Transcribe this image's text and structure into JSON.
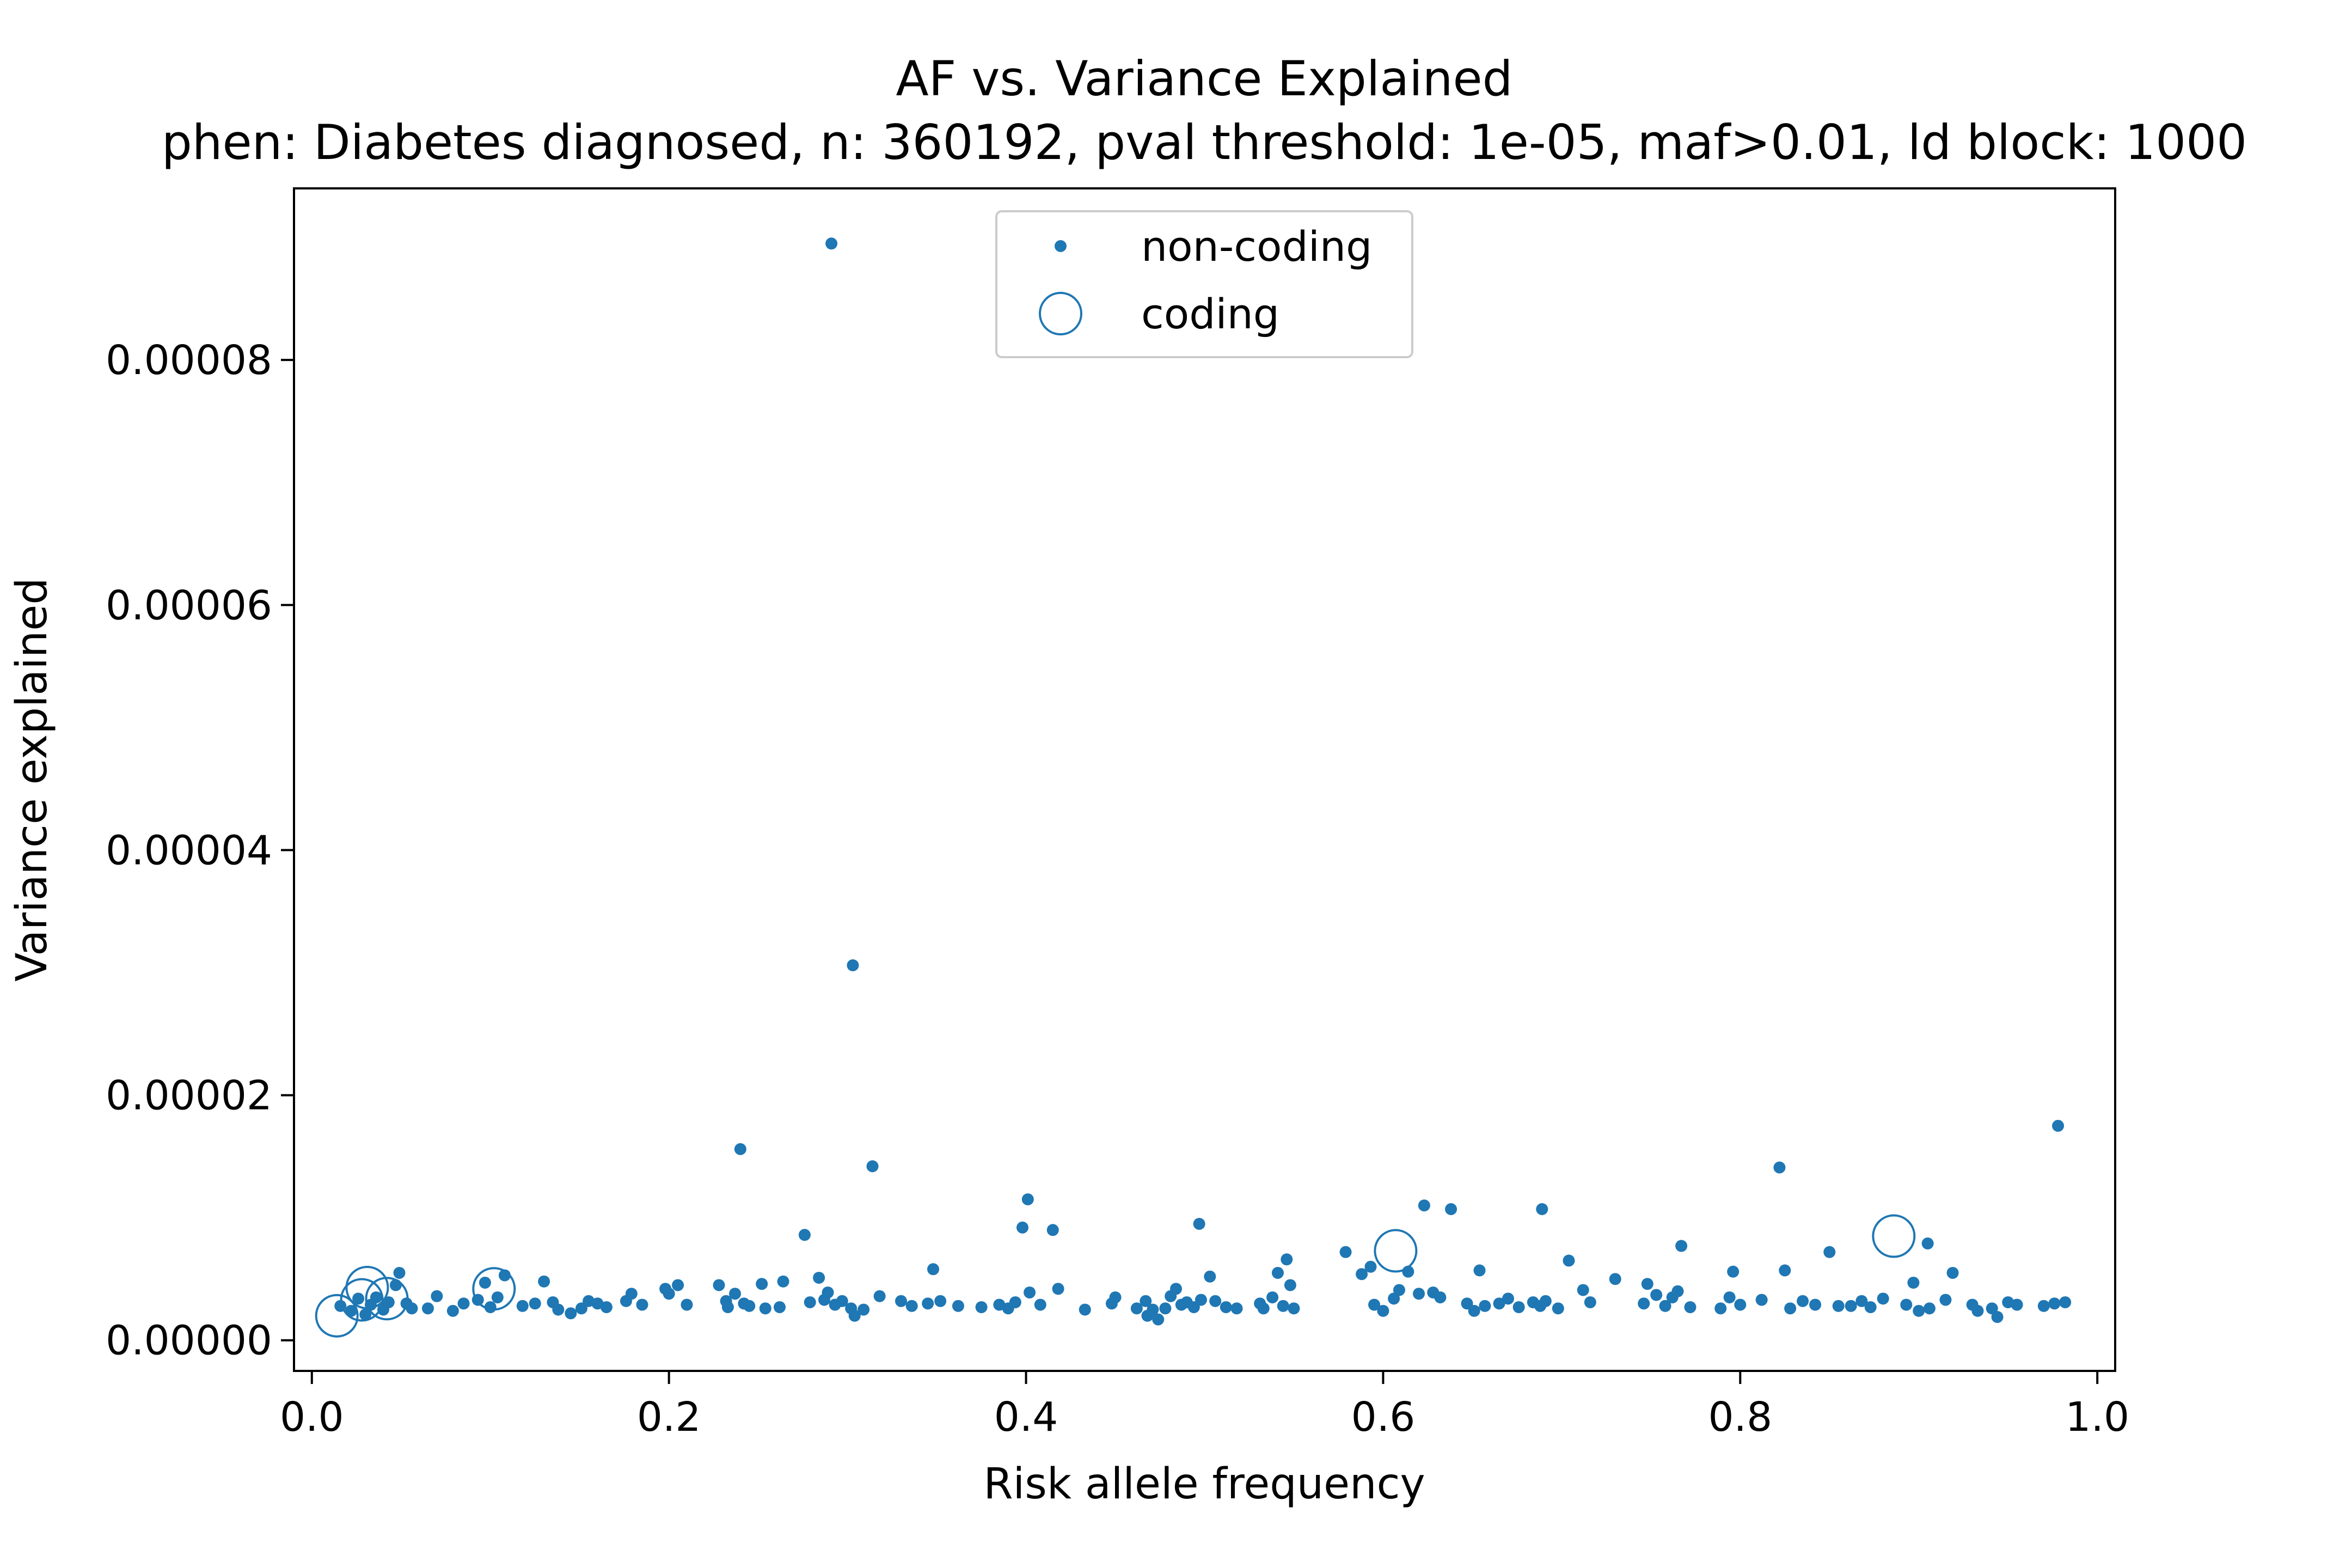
{
  "chart_data": {
    "type": "scatter",
    "title": "AF vs. Variance Explained",
    "subtitle": "phen: Diabetes diagnosed, n: 360192, pval threshold: 1e-05, maf>0.01, ld block: 1000",
    "xlabel": "Risk allele frequency",
    "ylabel": "Variance explained",
    "xlim": [
      -0.01,
      1.01
    ],
    "ylim": [
      -2.5e-06,
      9.4e-05
    ],
    "x_ticks": [
      0.0,
      0.2,
      0.4,
      0.6,
      0.8,
      1.0
    ],
    "x_tick_labels": [
      "0.0",
      "0.2",
      "0.4",
      "0.6",
      "0.8",
      "1.0"
    ],
    "y_ticks": [
      0,
      2e-05,
      4e-05,
      6e-05,
      8e-05
    ],
    "y_tick_labels": [
      "0.00000",
      "0.00002",
      "0.00004",
      "0.00006",
      "0.00008"
    ],
    "grid": false,
    "legend_position": "upper center",
    "series": [
      {
        "name": "non-coding",
        "marker": "dot",
        "color": "#1f77b4",
        "points": [
          [
            0.016,
            2.8e-06
          ],
          [
            0.022,
            2.4e-06
          ],
          [
            0.026,
            3.4e-06
          ],
          [
            0.03,
            2.1e-06
          ],
          [
            0.033,
            2.9e-06
          ],
          [
            0.036,
            3.5e-06
          ],
          [
            0.04,
            2.5e-06
          ],
          [
            0.043,
            3.1e-06
          ],
          [
            0.047,
            4.5e-06
          ],
          [
            0.049,
            5.5e-06
          ],
          [
            0.053,
            3e-06
          ],
          [
            0.056,
            2.6e-06
          ],
          [
            0.065,
            2.6e-06
          ],
          [
            0.07,
            3.6e-06
          ],
          [
            0.079,
            2.4e-06
          ],
          [
            0.085,
            3e-06
          ],
          [
            0.093,
            3.3e-06
          ],
          [
            0.097,
            4.7e-06
          ],
          [
            0.1,
            2.7e-06
          ],
          [
            0.104,
            3.5e-06
          ],
          [
            0.108,
            5.3e-06
          ],
          [
            0.118,
            2.8e-06
          ],
          [
            0.125,
            3e-06
          ],
          [
            0.13,
            4.8e-06
          ],
          [
            0.135,
            3.1e-06
          ],
          [
            0.138,
            2.5e-06
          ],
          [
            0.145,
            2.2e-06
          ],
          [
            0.151,
            2.6e-06
          ],
          [
            0.155,
            3.2e-06
          ],
          [
            0.16,
            3e-06
          ],
          [
            0.165,
            2.7e-06
          ],
          [
            0.176,
            3.2e-06
          ],
          [
            0.179,
            3.8e-06
          ],
          [
            0.185,
            2.9e-06
          ],
          [
            0.198,
            4.2e-06
          ],
          [
            0.2,
            3.8e-06
          ],
          [
            0.205,
            4.5e-06
          ],
          [
            0.21,
            2.9e-06
          ],
          [
            0.228,
            4.5e-06
          ],
          [
            0.232,
            3.2e-06
          ],
          [
            0.233,
            2.7e-06
          ],
          [
            0.237,
            3.8e-06
          ],
          [
            0.24,
            1.56e-05
          ],
          [
            0.242,
            3e-06
          ],
          [
            0.245,
            2.8e-06
          ],
          [
            0.252,
            4.6e-06
          ],
          [
            0.254,
            2.6e-06
          ],
          [
            0.262,
            2.7e-06
          ],
          [
            0.264,
            4.8e-06
          ],
          [
            0.276,
            8.6e-06
          ],
          [
            0.279,
            3.1e-06
          ],
          [
            0.284,
            5.1e-06
          ],
          [
            0.287,
            3.3e-06
          ],
          [
            0.291,
            8.95e-05
          ],
          [
            0.289,
            3.9e-06
          ],
          [
            0.293,
            2.9e-06
          ],
          [
            0.297,
            3.2e-06
          ],
          [
            0.302,
            2.6e-06
          ],
          [
            0.303,
            3.06e-05
          ],
          [
            0.304,
            2e-06
          ],
          [
            0.309,
            2.5e-06
          ],
          [
            0.314,
            1.42e-05
          ],
          [
            0.318,
            3.6e-06
          ],
          [
            0.33,
            3.2e-06
          ],
          [
            0.336,
            2.8e-06
          ],
          [
            0.345,
            3e-06
          ],
          [
            0.348,
            5.8e-06
          ],
          [
            0.352,
            3.2e-06
          ],
          [
            0.362,
            2.8e-06
          ],
          [
            0.375,
            2.7e-06
          ],
          [
            0.385,
            2.9e-06
          ],
          [
            0.39,
            2.6e-06
          ],
          [
            0.394,
            3.1e-06
          ],
          [
            0.398,
            9.2e-06
          ],
          [
            0.401,
            1.15e-05
          ],
          [
            0.402,
            3.9e-06
          ],
          [
            0.408,
            2.9e-06
          ],
          [
            0.415,
            9e-06
          ],
          [
            0.418,
            4.2e-06
          ],
          [
            0.433,
            2.5e-06
          ],
          [
            0.448,
            3e-06
          ],
          [
            0.45,
            3.5e-06
          ],
          [
            0.462,
            2.6e-06
          ],
          [
            0.467,
            3.2e-06
          ],
          [
            0.468,
            2e-06
          ],
          [
            0.471,
            2.5e-06
          ],
          [
            0.474,
            1.7e-06
          ],
          [
            0.478,
            2.6e-06
          ],
          [
            0.481,
            3.6e-06
          ],
          [
            0.484,
            4.2e-06
          ],
          [
            0.487,
            2.9e-06
          ],
          [
            0.49,
            3.1e-06
          ],
          [
            0.494,
            2.7e-06
          ],
          [
            0.497,
            9.5e-06
          ],
          [
            0.498,
            3.3e-06
          ],
          [
            0.503,
            5.2e-06
          ],
          [
            0.506,
            3.2e-06
          ],
          [
            0.512,
            2.7e-06
          ],
          [
            0.518,
            2.6e-06
          ],
          [
            0.531,
            3e-06
          ],
          [
            0.533,
            2.6e-06
          ],
          [
            0.538,
            3.5e-06
          ],
          [
            0.541,
            5.5e-06
          ],
          [
            0.544,
            2.8e-06
          ],
          [
            0.546,
            6.6e-06
          ],
          [
            0.548,
            4.5e-06
          ],
          [
            0.55,
            2.6e-06
          ],
          [
            0.579,
            7.2e-06
          ],
          [
            0.588,
            5.4e-06
          ],
          [
            0.593,
            6e-06
          ],
          [
            0.595,
            2.9e-06
          ],
          [
            0.6,
            2.4e-06
          ],
          [
            0.606,
            3.4e-06
          ],
          [
            0.609,
            4.1e-06
          ],
          [
            0.614,
            5.6e-06
          ],
          [
            0.62,
            3.8e-06
          ],
          [
            0.623,
            1.1e-05
          ],
          [
            0.628,
            3.9e-06
          ],
          [
            0.632,
            3.5e-06
          ],
          [
            0.638,
            1.07e-05
          ],
          [
            0.647,
            3e-06
          ],
          [
            0.651,
            2.4e-06
          ],
          [
            0.654,
            5.7e-06
          ],
          [
            0.657,
            2.8e-06
          ],
          [
            0.665,
            3e-06
          ],
          [
            0.67,
            3.4e-06
          ],
          [
            0.676,
            2.7e-06
          ],
          [
            0.684,
            3.1e-06
          ],
          [
            0.688,
            2.8e-06
          ],
          [
            0.689,
            1.07e-05
          ],
          [
            0.691,
            3.2e-06
          ],
          [
            0.698,
            2.6e-06
          ],
          [
            0.704,
            6.5e-06
          ],
          [
            0.712,
            4.1e-06
          ],
          [
            0.716,
            3.1e-06
          ],
          [
            0.73,
            5e-06
          ],
          [
            0.746,
            3e-06
          ],
          [
            0.748,
            4.6e-06
          ],
          [
            0.753,
            3.7e-06
          ],
          [
            0.758,
            2.8e-06
          ],
          [
            0.762,
            3.5e-06
          ],
          [
            0.765,
            4e-06
          ],
          [
            0.767,
            7.7e-06
          ],
          [
            0.772,
            2.7e-06
          ],
          [
            0.789,
            2.6e-06
          ],
          [
            0.794,
            3.5e-06
          ],
          [
            0.796,
            5.6e-06
          ],
          [
            0.8,
            2.9e-06
          ],
          [
            0.812,
            3.3e-06
          ],
          [
            0.822,
            1.41e-05
          ],
          [
            0.825,
            5.7e-06
          ],
          [
            0.828,
            2.6e-06
          ],
          [
            0.835,
            3.2e-06
          ],
          [
            0.842,
            2.9e-06
          ],
          [
            0.85,
            7.2e-06
          ],
          [
            0.855,
            2.8e-06
          ],
          [
            0.862,
            2.8e-06
          ],
          [
            0.868,
            3.2e-06
          ],
          [
            0.873,
            2.7e-06
          ],
          [
            0.88,
            3.4e-06
          ],
          [
            0.893,
            2.9e-06
          ],
          [
            0.897,
            4.7e-06
          ],
          [
            0.9,
            2.4e-06
          ],
          [
            0.905,
            7.9e-06
          ],
          [
            0.906,
            2.6e-06
          ],
          [
            0.915,
            3.3e-06
          ],
          [
            0.919,
            5.5e-06
          ],
          [
            0.93,
            2.9e-06
          ],
          [
            0.933,
            2.4e-06
          ],
          [
            0.941,
            2.6e-06
          ],
          [
            0.944,
            1.9e-06
          ],
          [
            0.95,
            3.1e-06
          ],
          [
            0.955,
            2.9e-06
          ],
          [
            0.97,
            2.8e-06
          ],
          [
            0.976,
            3e-06
          ],
          [
            0.978,
            1.75e-05
          ],
          [
            0.982,
            3.1e-06
          ]
        ]
      },
      {
        "name": "coding",
        "marker": "circle",
        "color": "#1f77b4",
        "points": [
          [
            0.014,
            2e-06
          ],
          [
            0.028,
            3.3e-06
          ],
          [
            0.031,
            4.3e-06
          ],
          [
            0.042,
            3.4e-06
          ],
          [
            0.102,
            4.2e-06
          ],
          [
            0.607,
            7.3e-06
          ],
          [
            0.886,
            8.5e-06
          ]
        ]
      }
    ]
  }
}
